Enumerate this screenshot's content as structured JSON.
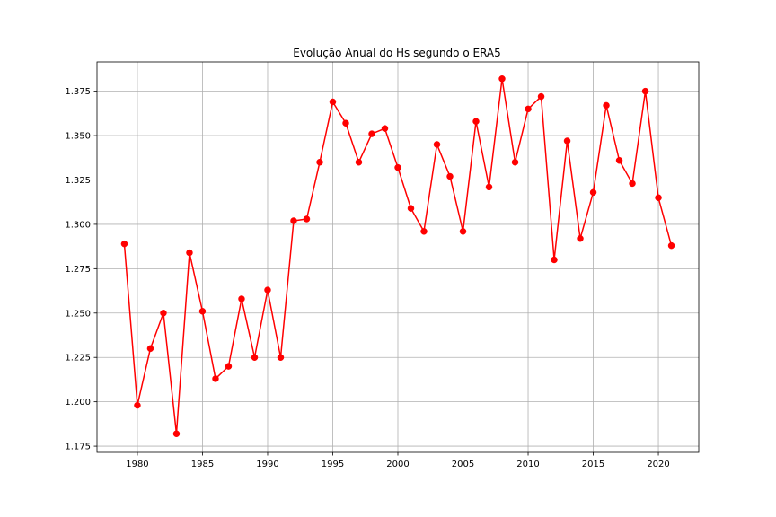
{
  "chart_data": {
    "type": "line",
    "title": "Evolução Anual do Hs segundo o ERA5",
    "xlabel": "",
    "ylabel": "",
    "xlim": [
      1976.9,
      2023.1
    ],
    "ylim": [
      1.1715,
      1.3915
    ],
    "x_ticks": [
      1980,
      1985,
      1990,
      1995,
      2000,
      2005,
      2010,
      2015,
      2020
    ],
    "y_ticks": [
      1.175,
      1.2,
      1.225,
      1.25,
      1.275,
      1.3,
      1.325,
      1.35,
      1.375
    ],
    "y_tick_labels": [
      "1.175",
      "1.200",
      "1.225",
      "1.250",
      "1.275",
      "1.300",
      "1.325",
      "1.350",
      "1.375"
    ],
    "grid": true,
    "legend": "none",
    "series": [
      {
        "color": "#ff0000",
        "marker": "circle",
        "x": [
          1979,
          1980,
          1981,
          1982,
          1983,
          1984,
          1985,
          1986,
          1987,
          1988,
          1989,
          1990,
          1991,
          1992,
          1993,
          1994,
          1995,
          1996,
          1997,
          1998,
          1999,
          2000,
          2001,
          2002,
          2003,
          2004,
          2005,
          2006,
          2007,
          2008,
          2009,
          2010,
          2011,
          2012,
          2013,
          2014,
          2015,
          2016,
          2017,
          2018,
          2019,
          2020,
          2021
        ],
        "values": [
          1.289,
          1.198,
          1.23,
          1.25,
          1.182,
          1.284,
          1.251,
          1.213,
          1.22,
          1.258,
          1.225,
          1.263,
          1.225,
          1.302,
          1.303,
          1.335,
          1.369,
          1.357,
          1.335,
          1.351,
          1.354,
          1.332,
          1.309,
          1.296,
          1.345,
          1.327,
          1.296,
          1.358,
          1.321,
          1.382,
          1.335,
          1.365,
          1.372,
          1.28,
          1.347,
          1.292,
          1.318,
          1.367,
          1.336,
          1.323,
          1.375,
          1.315,
          1.288
        ]
      }
    ]
  }
}
